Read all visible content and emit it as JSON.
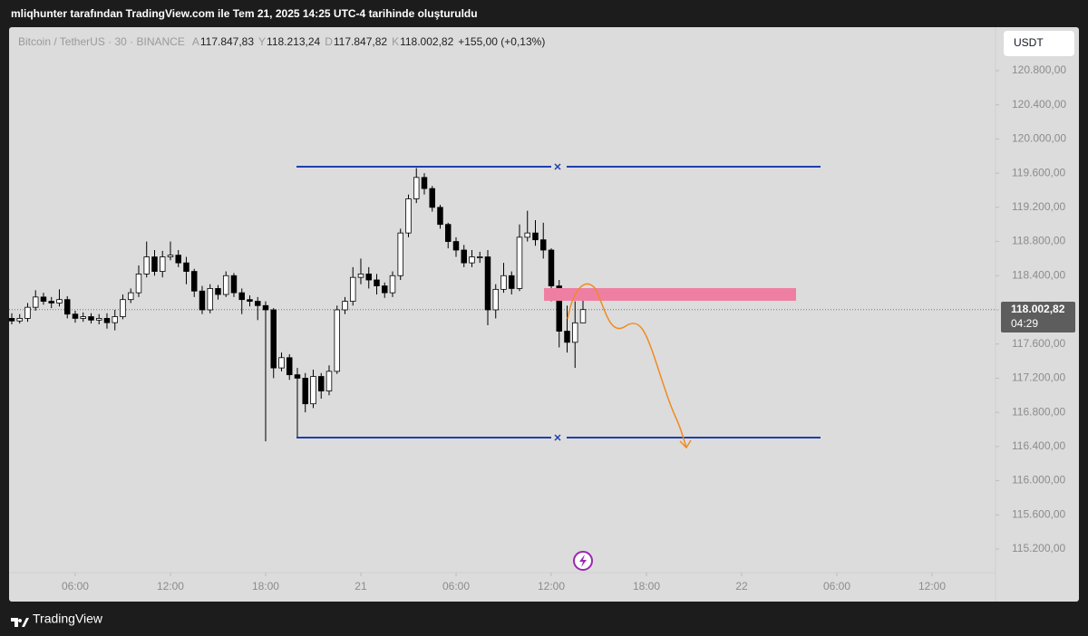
{
  "header": {
    "title": "mliqhunter tarafından TradingView.com ile Tem 21, 2025 14:25 UTC-4 tarihinde oluşturuldu"
  },
  "chart_data": {
    "type": "candlestick",
    "symbol": "Bitcoin / TetherUS · 30 · BINANCE",
    "ohlc_legend": [
      {
        "key": "A",
        "label": "117.847,83"
      },
      {
        "key": "Y",
        "label": "118.213,24"
      },
      {
        "key": "D",
        "label": "117.847,82"
      },
      {
        "key": "K",
        "label": "118.002,82"
      }
    ],
    "change": "+155,00 (+0,13%)",
    "currency": "USDT",
    "last_price_label": "118.002,82",
    "countdown": "04:29",
    "x": [
      2,
      2.5,
      3,
      3.5,
      4,
      4.5,
      5,
      5.5,
      6,
      6.5,
      7,
      7.5,
      8,
      8.5,
      9,
      9.5,
      10,
      10.5,
      11,
      11.5,
      12,
      12.5,
      13,
      13.5,
      14,
      14.5,
      15,
      15.5,
      16,
      16.5,
      17,
      17.5,
      18,
      18.5,
      19,
      19.5,
      20,
      20.5,
      21,
      21.5,
      22,
      22.5,
      23,
      23.5,
      24,
      24.5,
      25,
      25.5,
      26,
      26.5,
      27,
      27.5,
      28,
      28.5,
      29,
      29.5,
      30,
      30.5,
      31,
      31.5,
      32,
      32.5,
      33,
      33.5,
      34,
      34.5,
      35,
      35.5,
      36,
      36.5,
      37,
      37.5,
      38
    ],
    "open": [
      117900,
      117870,
      117900,
      118030,
      118150,
      118100,
      118080,
      118120,
      117950,
      117900,
      117920,
      117880,
      117900,
      117850,
      117920,
      118120,
      118200,
      118420,
      118620,
      118450,
      118620,
      118640,
      118550,
      118450,
      118220,
      118000,
      118250,
      118180,
      118400,
      118200,
      118120,
      118100,
      118050,
      118000,
      117320,
      117440,
      117240,
      117200,
      116900,
      117220,
      117050,
      117280,
      118000,
      118100,
      118380,
      118420,
      118350,
      118280,
      118200,
      118400,
      118900,
      119300,
      119550,
      119420,
      119200,
      119000,
      118800,
      118700,
      118550,
      118620,
      118620,
      118000,
      118240,
      118400,
      118250,
      118850,
      118900,
      118820,
      118700,
      118280,
      117750,
      117620,
      117847.83
    ],
    "high": [
      117960,
      117950,
      118080,
      118230,
      118200,
      118150,
      118240,
      118160,
      117990,
      117970,
      117960,
      117950,
      117960,
      118000,
      118180,
      118250,
      118520,
      118800,
      118700,
      118690,
      118800,
      118700,
      118620,
      118480,
      118280,
      118300,
      118290,
      118450,
      118430,
      118250,
      118170,
      118150,
      118100,
      118020,
      117500,
      117480,
      117320,
      117260,
      117300,
      117260,
      117350,
      118050,
      118150,
      118500,
      118600,
      118500,
      118420,
      118320,
      118450,
      118950,
      119350,
      119660,
      119600,
      119450,
      119230,
      119020,
      118850,
      118760,
      118700,
      118680,
      118700,
      118300,
      118550,
      118450,
      119000,
      119160,
      119050,
      119020,
      118720,
      118350,
      118050,
      118100,
      118213.24
    ],
    "low": [
      117830,
      117840,
      117860,
      117990,
      118060,
      118020,
      118040,
      117900,
      117850,
      117860,
      117840,
      117830,
      117780,
      117760,
      117890,
      118080,
      118150,
      118380,
      118400,
      118380,
      118580,
      118500,
      118300,
      118150,
      117950,
      117960,
      118120,
      118150,
      118150,
      117950,
      118040,
      117880,
      116460,
      117200,
      117280,
      117180,
      116500,
      116800,
      116850,
      116960,
      117000,
      117250,
      117950,
      118050,
      118300,
      118250,
      118180,
      118140,
      118150,
      118350,
      118850,
      119250,
      119350,
      119150,
      118950,
      118720,
      118620,
      118500,
      118500,
      118550,
      117820,
      117900,
      118200,
      118180,
      118220,
      118800,
      118750,
      118600,
      118100,
      117560,
      117500,
      117320,
      117847.82
    ],
    "close": [
      117870,
      117900,
      118030,
      118150,
      118100,
      118080,
      118120,
      117950,
      117900,
      117920,
      117880,
      117900,
      117850,
      117920,
      118120,
      118200,
      118420,
      118620,
      118450,
      118620,
      118640,
      118550,
      118450,
      118220,
      118000,
      118250,
      118180,
      118400,
      118200,
      118120,
      118100,
      118050,
      118000,
      117320,
      117440,
      117240,
      117200,
      116900,
      117220,
      117050,
      117280,
      118000,
      118100,
      118380,
      118420,
      118350,
      118280,
      118200,
      118400,
      118900,
      119300,
      119550,
      119420,
      119200,
      119000,
      118800,
      118700,
      118550,
      118620,
      118620,
      118000,
      118240,
      118400,
      118250,
      118850,
      118900,
      118820,
      118700,
      118280,
      117750,
      117620,
      117847.83,
      118002.82
    ],
    "xlim": [
      1.83,
      64
    ],
    "ylim": [
      114924,
      121288
    ],
    "xticks": [
      {
        "value": 6,
        "label": "06:00"
      },
      {
        "value": 12,
        "label": "12:00"
      },
      {
        "value": 18,
        "label": "18:00"
      },
      {
        "value": 24,
        "label": "21"
      },
      {
        "value": 30,
        "label": "06:00"
      },
      {
        "value": 36,
        "label": "12:00"
      },
      {
        "value": 42,
        "label": "18:00"
      },
      {
        "value": 48,
        "label": "22"
      },
      {
        "value": 54,
        "label": "06:00"
      },
      {
        "value": 60,
        "label": "12:00"
      }
    ],
    "yticks": [
      {
        "value": 120800,
        "label": "120.800,00"
      },
      {
        "value": 120400,
        "label": "120.400,00"
      },
      {
        "value": 120000,
        "label": "120.000,00"
      },
      {
        "value": 119600,
        "label": "119.600,00"
      },
      {
        "value": 119200,
        "label": "119.200,00"
      },
      {
        "value": 118800,
        "label": "118.800,00"
      },
      {
        "value": 118400,
        "label": "118.400,00"
      },
      {
        "value": 118000,
        "label": "118.000,00"
      },
      {
        "value": 117600,
        "label": "117.600,00"
      },
      {
        "value": 117200,
        "label": "117.200,00"
      },
      {
        "value": 116800,
        "label": "116.800,00"
      },
      {
        "value": 116400,
        "label": "116.400,00"
      },
      {
        "value": 116000,
        "label": "116.000,00"
      },
      {
        "value": 115600,
        "label": "115.600,00"
      },
      {
        "value": 115200,
        "label": "115.200,00"
      }
    ],
    "up_color": "#ffffff",
    "down_color": "#000000",
    "wick_color": "#000000"
  },
  "footer": {
    "brand": "TradingView"
  }
}
